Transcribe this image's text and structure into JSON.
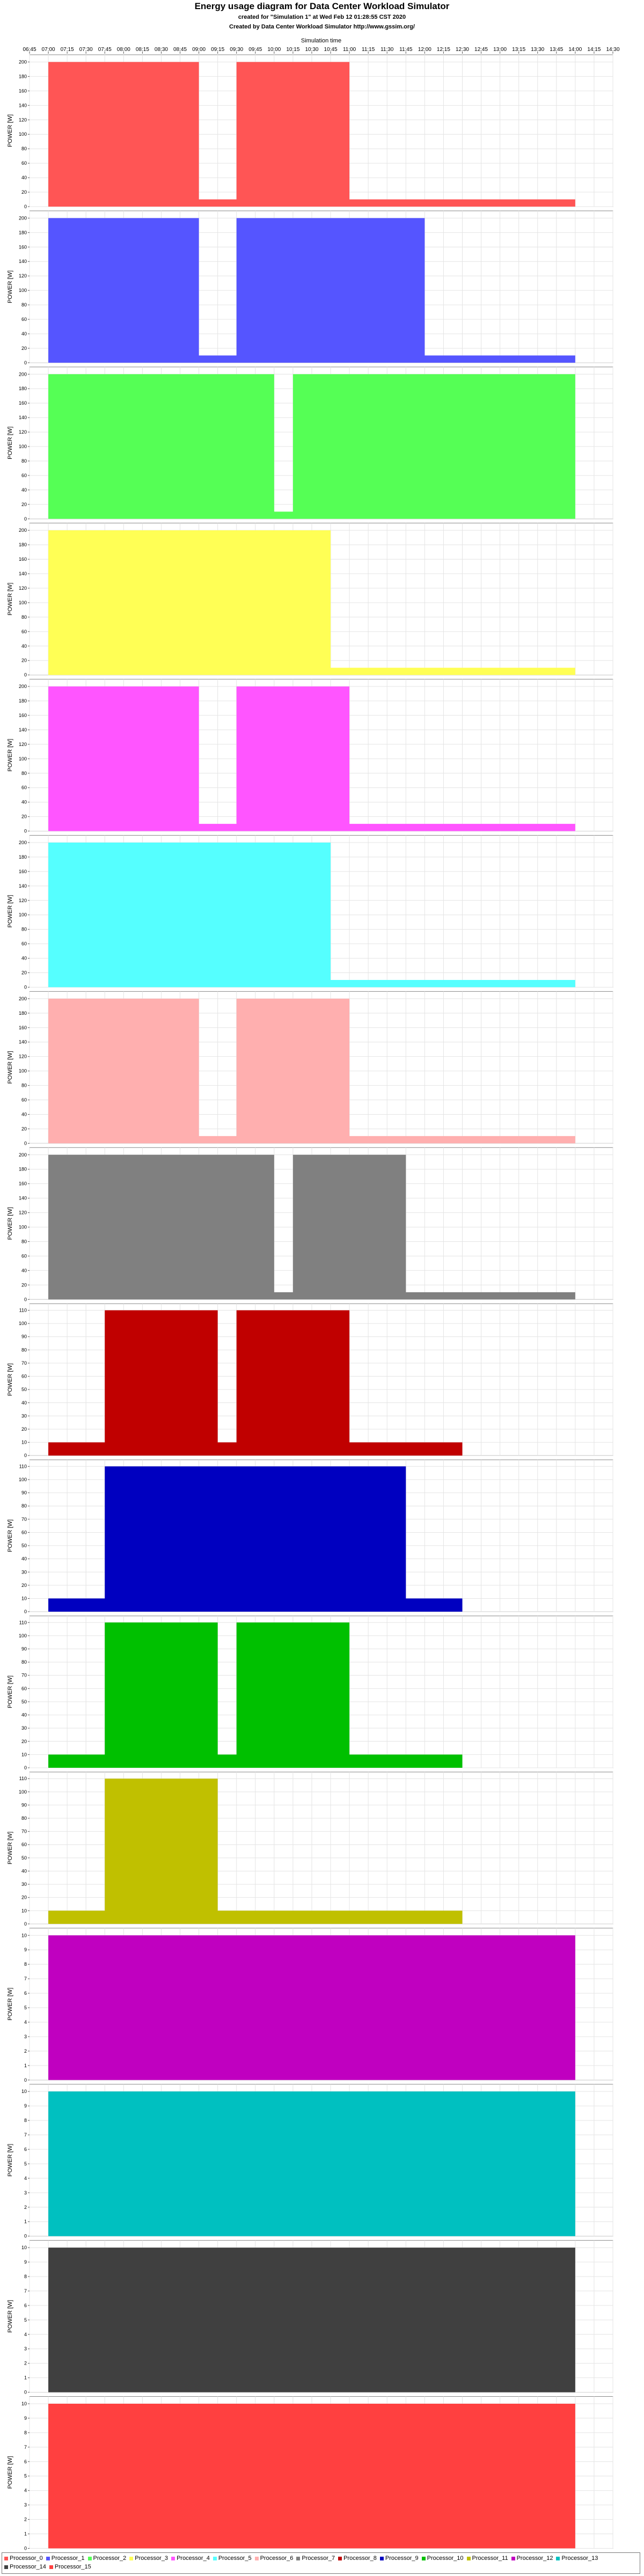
{
  "header": {
    "title": "Energy usage diagram for Data Center Workload Simulator",
    "subtitle": "created for \"Simulation 1\" at Wed Feb 12 01:28:55 CST 2020",
    "credit": "Created by Data Center Workload Simulator http://www.gssim.org/"
  },
  "chart_data": {
    "type": "area",
    "xlabel": "Simulation time",
    "ylabel": "POWER [W]",
    "x_ticks": [
      "06:45",
      "07:00",
      "07:15",
      "07:30",
      "07:45",
      "08:00",
      "08:15",
      "08:30",
      "08:45",
      "09:00",
      "09:15",
      "09:30",
      "09:45",
      "10:00",
      "10:15",
      "10:30",
      "10:45",
      "11:00",
      "11:15",
      "11:30",
      "11:45",
      "12:00",
      "12:15",
      "12:30",
      "12:45",
      "13:00",
      "13:15",
      "13:30",
      "13:45",
      "14:00",
      "14:15",
      "14:30"
    ],
    "xlim": [
      "06:45",
      "14:30"
    ],
    "grid": true,
    "legend_position": "bottom",
    "series": [
      {
        "name": "Processor_0",
        "color": "#ff5555",
        "ylim": [
          0,
          210
        ],
        "y_ticks": [
          0,
          20,
          40,
          60,
          80,
          100,
          120,
          140,
          160,
          180,
          200
        ],
        "steps": [
          [
            "07:00",
            200
          ],
          [
            "09:00",
            10
          ],
          [
            "09:30",
            200
          ],
          [
            "11:00",
            10
          ],
          [
            "14:00",
            null
          ]
        ]
      },
      {
        "name": "Processor_1",
        "color": "#5555ff",
        "ylim": [
          0,
          210
        ],
        "y_ticks": [
          0,
          20,
          40,
          60,
          80,
          100,
          120,
          140,
          160,
          180,
          200
        ],
        "steps": [
          [
            "07:00",
            200
          ],
          [
            "09:00",
            10
          ],
          [
            "09:30",
            200
          ],
          [
            "12:00",
            10
          ],
          [
            "14:00",
            null
          ]
        ]
      },
      {
        "name": "Processor_2",
        "color": "#55ff55",
        "ylim": [
          0,
          210
        ],
        "y_ticks": [
          0,
          20,
          40,
          60,
          80,
          100,
          120,
          140,
          160,
          180,
          200
        ],
        "steps": [
          [
            "07:00",
            200
          ],
          [
            "10:00",
            10
          ],
          [
            "10:15",
            200
          ],
          [
            "14:00",
            null
          ]
        ]
      },
      {
        "name": "Processor_3",
        "color": "#ffff55",
        "ylim": [
          0,
          210
        ],
        "y_ticks": [
          0,
          20,
          40,
          60,
          80,
          100,
          120,
          140,
          160,
          180,
          200
        ],
        "steps": [
          [
            "07:00",
            200
          ],
          [
            "10:45",
            10
          ],
          [
            "14:00",
            null
          ]
        ]
      },
      {
        "name": "Processor_4",
        "color": "#ff55ff",
        "ylim": [
          0,
          210
        ],
        "y_ticks": [
          0,
          20,
          40,
          60,
          80,
          100,
          120,
          140,
          160,
          180,
          200
        ],
        "steps": [
          [
            "07:00",
            200
          ],
          [
            "09:00",
            10
          ],
          [
            "09:30",
            200
          ],
          [
            "11:00",
            10
          ],
          [
            "14:00",
            null
          ]
        ]
      },
      {
        "name": "Processor_5",
        "color": "#55ffff",
        "ylim": [
          0,
          210
        ],
        "y_ticks": [
          0,
          20,
          40,
          60,
          80,
          100,
          120,
          140,
          160,
          180,
          200
        ],
        "steps": [
          [
            "07:00",
            200
          ],
          [
            "10:45",
            10
          ],
          [
            "14:00",
            null
          ]
        ]
      },
      {
        "name": "Processor_6",
        "color": "#ffafaf",
        "ylim": [
          0,
          210
        ],
        "y_ticks": [
          0,
          20,
          40,
          60,
          80,
          100,
          120,
          140,
          160,
          180,
          200
        ],
        "steps": [
          [
            "07:00",
            200
          ],
          [
            "09:00",
            10
          ],
          [
            "09:30",
            200
          ],
          [
            "11:00",
            10
          ],
          [
            "14:00",
            null
          ]
        ]
      },
      {
        "name": "Processor_7",
        "color": "#808080",
        "ylim": [
          0,
          210
        ],
        "y_ticks": [
          0,
          20,
          40,
          60,
          80,
          100,
          120,
          140,
          160,
          180,
          200
        ],
        "steps": [
          [
            "07:00",
            200
          ],
          [
            "10:00",
            10
          ],
          [
            "10:15",
            200
          ],
          [
            "11:45",
            10
          ],
          [
            "14:00",
            null
          ]
        ]
      },
      {
        "name": "Processor_8",
        "color": "#c00000",
        "ylim": [
          0,
          115
        ],
        "y_ticks": [
          0,
          10,
          20,
          30,
          40,
          50,
          60,
          70,
          80,
          90,
          100,
          110
        ],
        "steps": [
          [
            "07:00",
            10
          ],
          [
            "07:45",
            110
          ],
          [
            "09:15",
            10
          ],
          [
            "09:30",
            110
          ],
          [
            "11:00",
            10
          ],
          [
            "12:30",
            null
          ]
        ]
      },
      {
        "name": "Processor_9",
        "color": "#0000c0",
        "ylim": [
          0,
          115
        ],
        "y_ticks": [
          0,
          10,
          20,
          30,
          40,
          50,
          60,
          70,
          80,
          90,
          100,
          110
        ],
        "steps": [
          [
            "07:00",
            10
          ],
          [
            "07:45",
            110
          ],
          [
            "11:45",
            10
          ],
          [
            "12:30",
            null
          ]
        ]
      },
      {
        "name": "Processor_10",
        "color": "#00c000",
        "ylim": [
          0,
          115
        ],
        "y_ticks": [
          0,
          10,
          20,
          30,
          40,
          50,
          60,
          70,
          80,
          90,
          100,
          110
        ],
        "steps": [
          [
            "07:00",
            10
          ],
          [
            "07:45",
            110
          ],
          [
            "09:15",
            10
          ],
          [
            "09:30",
            110
          ],
          [
            "11:00",
            10
          ],
          [
            "12:30",
            null
          ]
        ]
      },
      {
        "name": "Processor_11",
        "color": "#c0c000",
        "ylim": [
          0,
          115
        ],
        "y_ticks": [
          0,
          10,
          20,
          30,
          40,
          50,
          60,
          70,
          80,
          90,
          100,
          110
        ],
        "steps": [
          [
            "07:00",
            10
          ],
          [
            "07:45",
            110
          ],
          [
            "09:15",
            10
          ],
          [
            "12:30",
            null
          ]
        ]
      },
      {
        "name": "Processor_12",
        "color": "#c000c0",
        "ylim": [
          0,
          10.5
        ],
        "y_ticks": [
          0,
          1,
          2,
          3,
          4,
          5,
          6,
          7,
          8,
          9,
          10
        ],
        "steps": [
          [
            "07:00",
            10
          ],
          [
            "14:00",
            null
          ]
        ]
      },
      {
        "name": "Processor_13",
        "color": "#00c0c0",
        "ylim": [
          0,
          10.5
        ],
        "y_ticks": [
          0,
          1,
          2,
          3,
          4,
          5,
          6,
          7,
          8,
          9,
          10
        ],
        "steps": [
          [
            "07:00",
            10
          ],
          [
            "14:00",
            null
          ]
        ]
      },
      {
        "name": "Processor_14",
        "color": "#404040",
        "ylim": [
          0,
          10.5
        ],
        "y_ticks": [
          0,
          1,
          2,
          3,
          4,
          5,
          6,
          7,
          8,
          9,
          10
        ],
        "steps": [
          [
            "07:00",
            10
          ],
          [
            "14:00",
            null
          ]
        ]
      },
      {
        "name": "Processor_15",
        "color": "#ff4040",
        "ylim": [
          0,
          10.5
        ],
        "y_ticks": [
          0,
          1,
          2,
          3,
          4,
          5,
          6,
          7,
          8,
          9,
          10
        ],
        "steps": [
          [
            "07:00",
            10
          ],
          [
            "14:00",
            null
          ]
        ]
      }
    ]
  },
  "legend_order": [
    "Processor_0",
    "Processor_1",
    "Processor_2",
    "Processor_3",
    "Processor_4",
    "Processor_5",
    "Processor_6",
    "Processor_7",
    "Processor_8",
    "Processor_9",
    "Processor_10",
    "Processor_11",
    "Processor_12",
    "Processor_13",
    "Processor_14",
    "Processor_15"
  ]
}
